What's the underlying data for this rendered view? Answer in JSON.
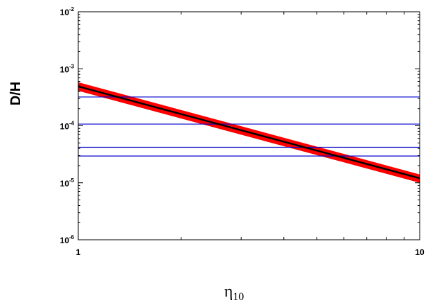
{
  "chart_data": {
    "type": "line",
    "xscale": "log",
    "yscale": "log",
    "xlim": [
      1,
      10
    ],
    "ylim": [
      1e-06,
      0.01
    ],
    "xlabel": {
      "main": "η",
      "sub": "10"
    },
    "ylabel": "D/H",
    "xticks": [
      {
        "value": 1,
        "label": "1"
      },
      {
        "value": 10,
        "label": "10"
      }
    ],
    "yticks": [
      {
        "value": 1e-06,
        "base": "10",
        "exp": "-6"
      },
      {
        "value": 1e-05,
        "base": "10",
        "exp": "-5"
      },
      {
        "value": 0.0001,
        "base": "10",
        "exp": "-4"
      },
      {
        "value": 0.001,
        "base": "10",
        "exp": "-3"
      },
      {
        "value": 0.01,
        "base": "10",
        "exp": "-2"
      }
    ],
    "grid": false,
    "series": [
      {
        "kind": "band",
        "color": "#ff0000",
        "x": [
          1,
          10
        ],
        "y_low": [
          0.00041,
          1e-05
        ],
        "y_high": [
          0.00058,
          1.4e-05
        ]
      },
      {
        "kind": "line",
        "color": "#000000",
        "x": [
          1,
          10
        ],
        "y": [
          0.00049,
          1.2e-05
        ]
      }
    ],
    "hlines": [
      {
        "y": 0.00032,
        "color": "#0000cc"
      },
      {
        "y": 0.000107,
        "color": "#0000cc"
      },
      {
        "y": 4.2e-05,
        "color": "#0000cc"
      },
      {
        "y": 2.95e-05,
        "color": "#0000cc"
      }
    ]
  }
}
